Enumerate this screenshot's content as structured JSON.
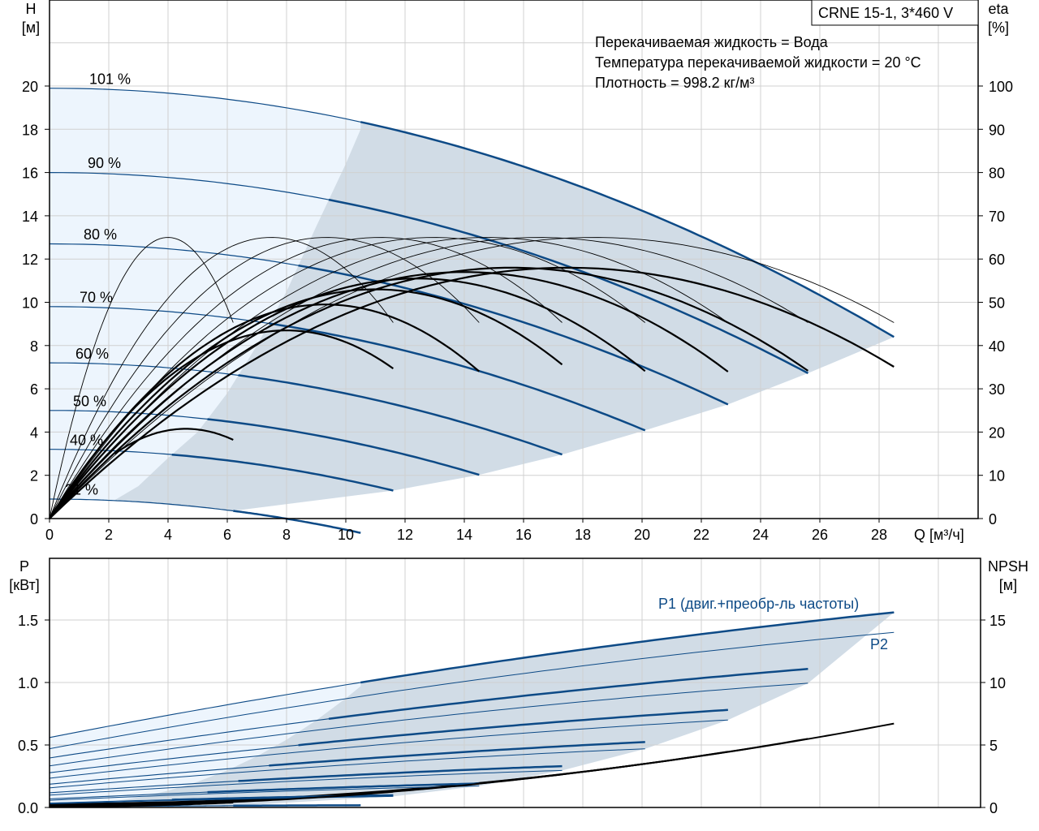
{
  "chart_data": [
    {
      "type": "line",
      "title": "CRNE 15-1, 3*460 V",
      "info": [
        "Перекачиваемая жидкость = Вода",
        "Температура перекачиваемой жидкости = 20 °C",
        "Плотность = 998.2 кг/м³"
      ],
      "xlabel": "Q [м³/ч]",
      "ylabel": [
        "H",
        "[м]"
      ],
      "y2label": [
        "eta",
        "[%]"
      ],
      "xlim": [
        0,
        31.3
      ],
      "ylim": [
        0,
        24
      ],
      "y2lim": [
        0,
        120
      ],
      "xticks": [
        0,
        2,
        4,
        6,
        8,
        10,
        12,
        14,
        16,
        18,
        20,
        22,
        24,
        26,
        28
      ],
      "yticks": [
        0,
        2,
        4,
        6,
        8,
        10,
        12,
        14,
        16,
        18,
        20
      ],
      "y2ticks": [
        0,
        10,
        20,
        30,
        40,
        50,
        60,
        70,
        80,
        90,
        100
      ],
      "grid": true,
      "speed_curves": [
        {
          "label": "101 %",
          "H0": 19.9,
          "Qend": 28.5
        },
        {
          "label": "90 %",
          "H0": 16.0,
          "Qend": 25.6
        },
        {
          "label": "80 %",
          "H0": 12.7,
          "Qend": 22.9
        },
        {
          "label": "70 %",
          "H0": 9.8,
          "Qend": 20.1
        },
        {
          "label": "60 %",
          "H0": 7.2,
          "Qend": 17.3
        },
        {
          "label": "50 %",
          "H0": 5.0,
          "Qend": 14.5
        },
        {
          "label": "40 %",
          "H0": 3.2,
          "Qend": 11.6
        },
        {
          "label": "21 %",
          "H0": 0.9,
          "Qend": 6.2
        }
      ],
      "head_curve_coefficient_k": 0.01416,
      "eta_pump_curves": {
        "peak_eta": 65,
        "end_eta": 46.5,
        "peak_fraction_of_Qend": 0.645
      },
      "eta_total_curves": [
        {
          "peak_eta": 58.0,
          "Qpk": 17.5,
          "Qstart": 0,
          "Qend": 28.5
        },
        {
          "peak_eta": 58.0,
          "Qpk": 15.6,
          "Qstart": 0,
          "Qend": 25.6
        },
        {
          "peak_eta": 57.0,
          "Qpk": 14.0,
          "Qstart": 0,
          "Qend": 22.9
        },
        {
          "peak_eta": 55.5,
          "Qpk": 12.4,
          "Qstart": 0,
          "Qend": 20.1
        },
        {
          "peak_eta": 53.0,
          "Qpk": 11.0,
          "Qstart": 0,
          "Qend": 17.3
        },
        {
          "peak_eta": 49.5,
          "Qpk": 9.3,
          "Qstart": 0,
          "Qend": 14.5
        },
        {
          "peak_eta": 43.5,
          "Qpk": 8.0,
          "Qstart": 0,
          "Qend": 11.6
        },
        {
          "peak_eta": 20.75,
          "Qpk": 4.6,
          "Qstart": 2.2,
          "Qend": 6.2
        }
      ],
      "operating_area_left_boundary": [
        [
          2.2,
          0.85
        ],
        [
          3,
          1.5
        ],
        [
          4,
          2.8
        ],
        [
          5,
          4.0
        ],
        [
          6,
          5.8
        ],
        [
          7,
          8.0
        ],
        [
          8,
          10.5
        ],
        [
          9,
          13.5
        ],
        [
          10,
          16.4
        ],
        [
          10.5,
          18.0
        ]
      ]
    },
    {
      "type": "line",
      "xlim": [
        0,
        31.3
      ],
      "ylabel": [
        "P",
        "[кВт]"
      ],
      "y2label": [
        "NPSH",
        "[м]"
      ],
      "ylim": [
        0,
        2.0
      ],
      "y2lim": [
        0,
        20
      ],
      "yticks": [
        "0.0",
        "0.5",
        "1.0",
        "1.5"
      ],
      "y2ticks": [
        0,
        5,
        10,
        15
      ],
      "grid": true,
      "legend": {
        "p1": "P1 (двиг.+преобр-ль частоты)",
        "p2": "P2"
      },
      "p1_101pct": {
        "a": 0.56,
        "b": 0.0459,
        "c": -0.000378
      },
      "p2_101pct": {
        "a": 0.47,
        "b": 0.044,
        "c": -0.000398
      },
      "npsh": {
        "a": 0.3,
        "c": 0.0079
      },
      "speed_fractions": [
        1.0,
        0.891,
        0.792,
        0.693,
        0.594,
        0.495,
        0.396,
        0.208
      ]
    }
  ],
  "colors": {
    "curve_blue": "#0d4a86",
    "area_light": "#edf5fd",
    "area_dark": "#d1dce6",
    "grid": "#d0d0d0"
  }
}
